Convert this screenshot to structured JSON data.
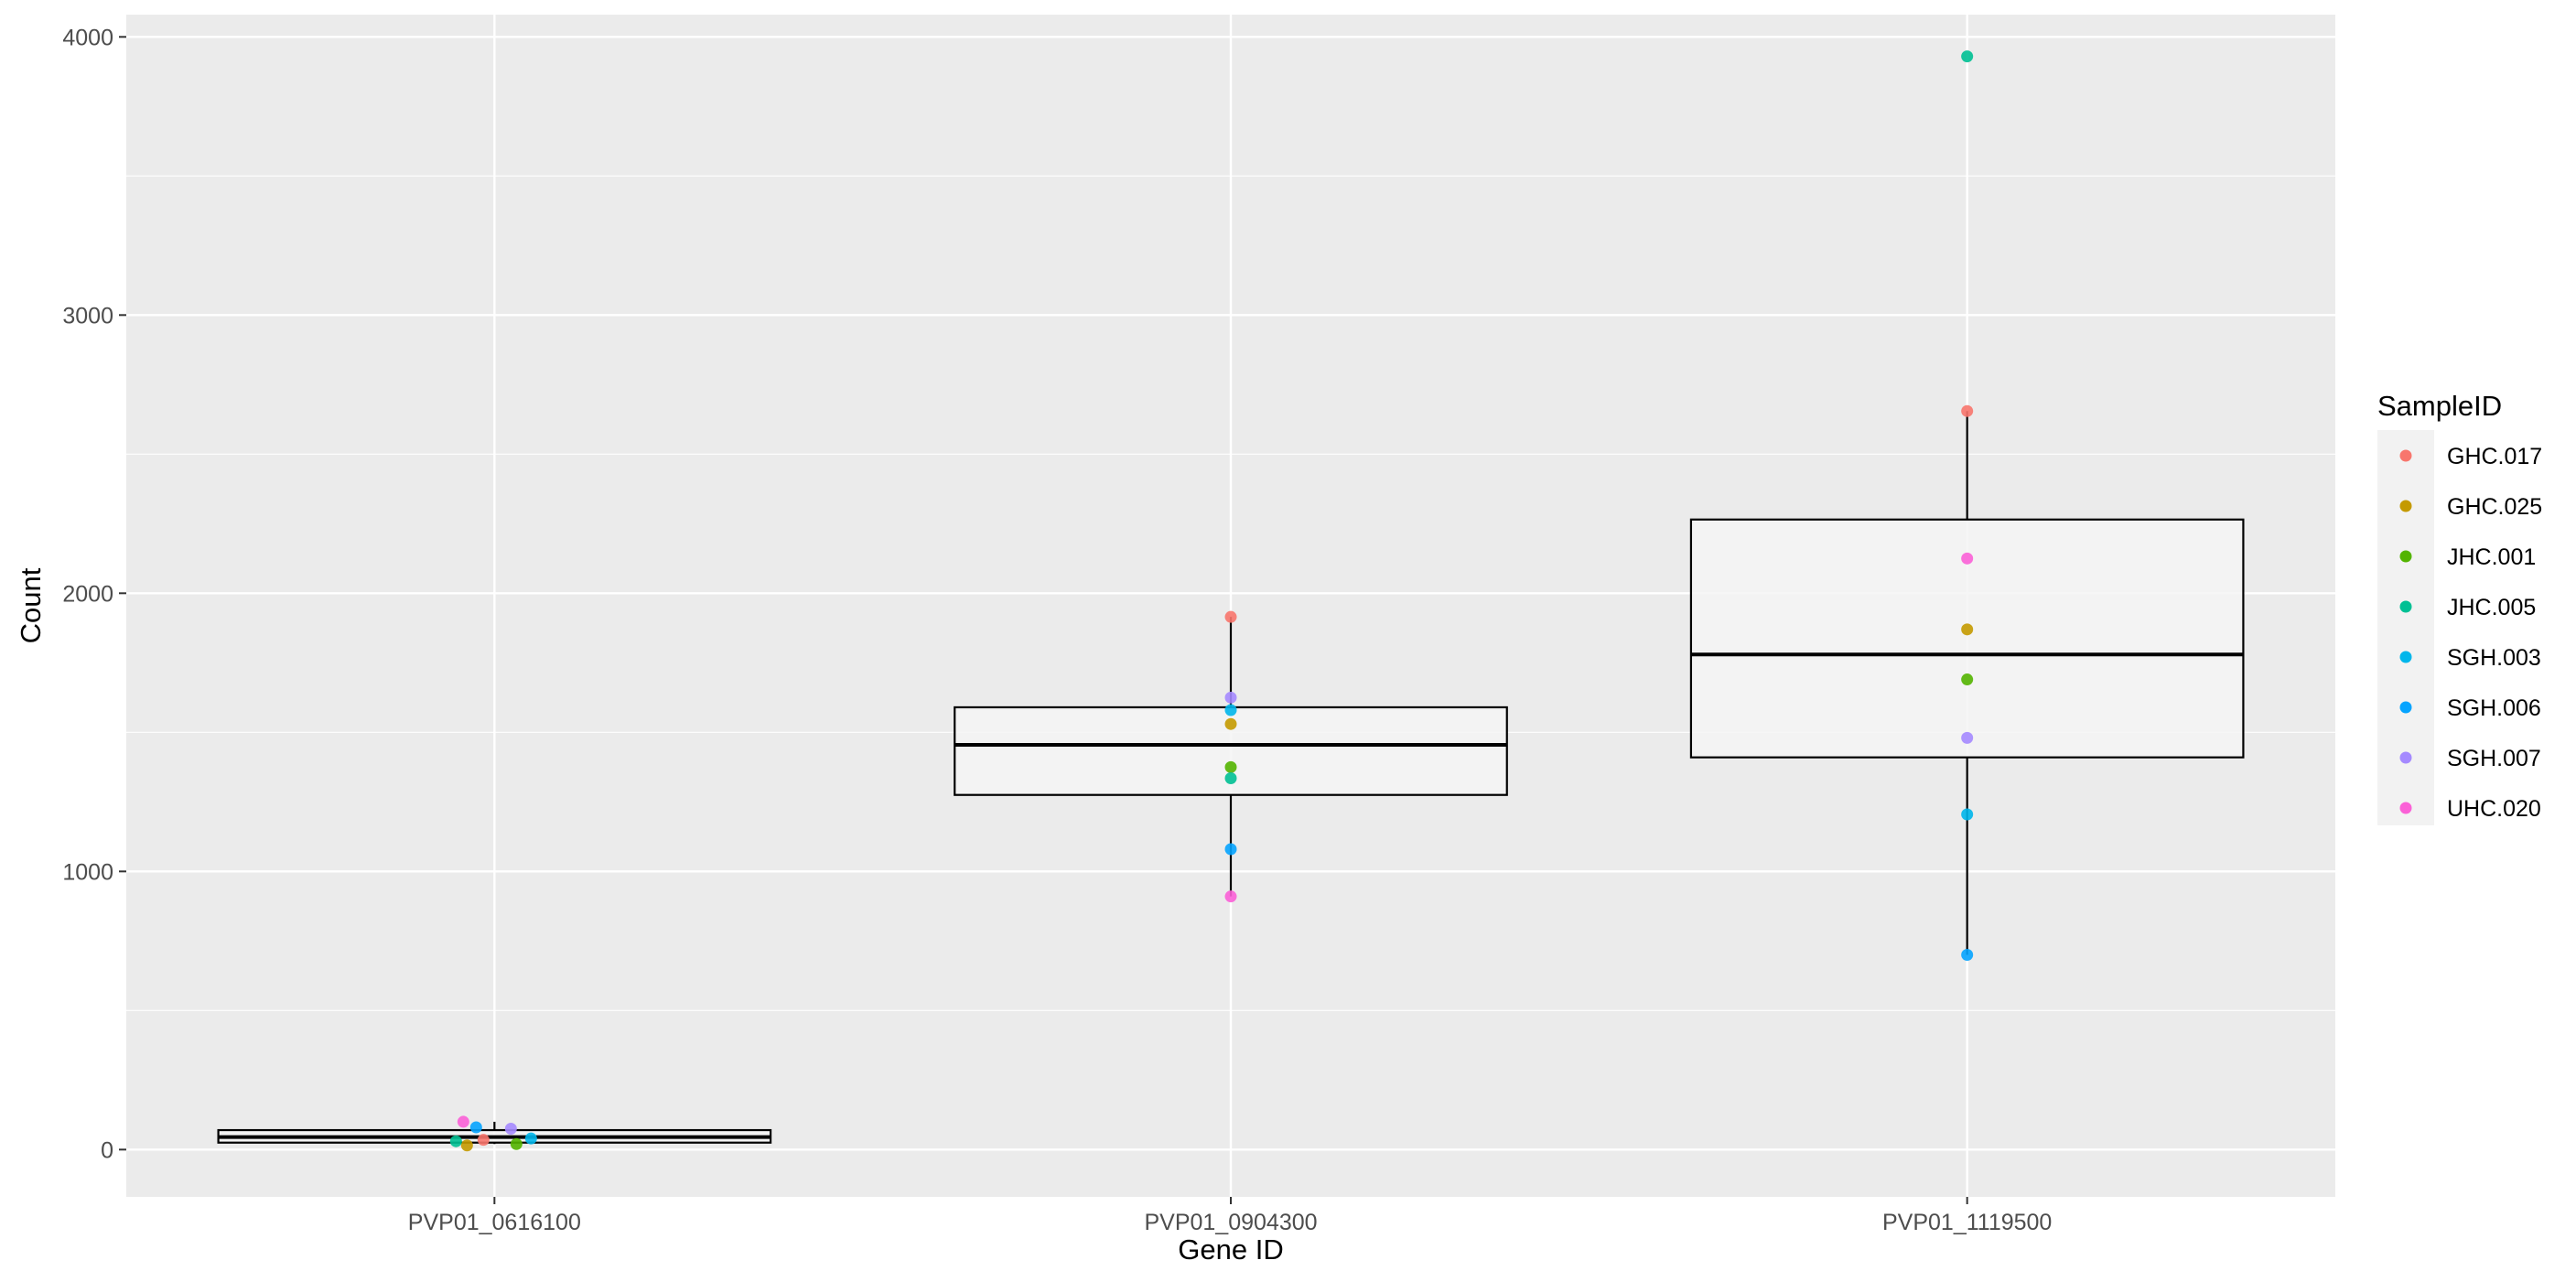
{
  "chart_data": {
    "type": "box",
    "xlabel": "Gene ID",
    "ylabel": "Count",
    "ylim": [
      -170,
      4080
    ],
    "y_ticks": [
      0,
      1000,
      2000,
      3000,
      4000
    ],
    "y_tick_labels": [
      "0",
      "1000",
      "2000",
      "3000",
      "4000"
    ],
    "categories": [
      "PVP01_0616100",
      "PVP01_0904300",
      "PVP01_1119500"
    ],
    "grid": true,
    "legend": {
      "title": "SampleID",
      "placement": "right",
      "entries": [
        {
          "label": "GHC.017",
          "color": "#F8766D"
        },
        {
          "label": "GHC.025",
          "color": "#C49A00"
        },
        {
          "label": "JHC.001",
          "color": "#53B400"
        },
        {
          "label": "JHC.005",
          "color": "#00C094"
        },
        {
          "label": "SGH.003",
          "color": "#00B6EB"
        },
        {
          "label": "SGH.006",
          "color": "#06A4FF"
        },
        {
          "label": "SGH.007",
          "color": "#A58AFF"
        },
        {
          "label": "UHC.020",
          "color": "#FB61D7"
        }
      ]
    },
    "boxes": [
      {
        "category": "PVP01_0616100",
        "whisker_low": 20,
        "q1": 25,
        "median": 45,
        "q3": 70,
        "whisker_high": 100
      },
      {
        "category": "PVP01_0904300",
        "whisker_low": 910,
        "q1": 1275,
        "median": 1455,
        "q3": 1590,
        "whisker_high": 1915
      },
      {
        "category": "PVP01_1119500",
        "whisker_low": 700,
        "q1": 1410,
        "median": 1780,
        "q3": 2265,
        "whisker_high": 2655
      }
    ],
    "series": [
      {
        "name": "GHC.017",
        "values": [
          35,
          1915,
          2655
        ]
      },
      {
        "name": "GHC.025",
        "values": [
          15,
          1530,
          1870
        ]
      },
      {
        "name": "JHC.001",
        "values": [
          20,
          1375,
          1690
        ]
      },
      {
        "name": "JHC.005",
        "values": [
          30,
          1335,
          3930
        ]
      },
      {
        "name": "SGH.003",
        "values": [
          40,
          1580,
          1205
        ]
      },
      {
        "name": "SGH.006",
        "values": [
          80,
          1080,
          700
        ]
      },
      {
        "name": "SGH.007",
        "values": [
          75,
          1625,
          1480
        ]
      },
      {
        "name": "UHC.020",
        "values": [
          100,
          910,
          2125
        ]
      }
    ]
  }
}
